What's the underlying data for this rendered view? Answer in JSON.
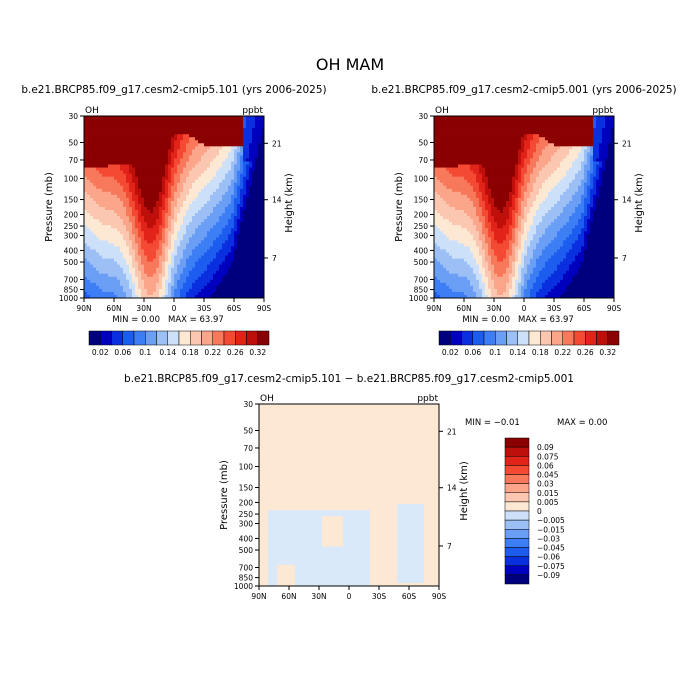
{
  "page": {
    "title": "OH MAM"
  },
  "palette": {
    "blues": [
      "#00007f",
      "#0000bf",
      "#0a2fdf",
      "#1c5df0",
      "#3e7ef5",
      "#6b9ef5",
      "#9cbff5",
      "#cde0fa"
    ],
    "reds": [
      "#fde8d4",
      "#fcc7b0",
      "#fba58a",
      "#f8785b",
      "#f44a33",
      "#e2231a",
      "#bf0f0b",
      "#8b0000"
    ],
    "diff_pale": "#fde8d4",
    "diff_light_blue": "#d9e9fa"
  },
  "chart_data": [
    {
      "type": "heatmap",
      "title": "b.e21.BRCP85.f09_g17.cesm2-cmip5.101 (yrs 2006-2025)",
      "variable_label": "OH",
      "units_label": "ppbt",
      "ylabel": "Pressure (mb)",
      "right_label": "Height (km)",
      "x_ticks": [
        "90N",
        "60N",
        "30N",
        "0",
        "30S",
        "60S",
        "90S"
      ],
      "y_ticks": [
        "30",
        "50",
        "70",
        "100",
        "150",
        "200",
        "250",
        "300",
        "400",
        "500",
        "700",
        "850",
        "1000"
      ],
      "height_ticks": [
        "21",
        "14",
        "7"
      ],
      "min_text": "MIN =     0.00",
      "max_text": "MAX =    63.97",
      "colorbar_labels": [
        "0.02",
        "0.06",
        "0.1",
        "0.14",
        "0.18",
        "0.22",
        "0.26",
        "0.32"
      ]
    },
    {
      "type": "heatmap",
      "title": "b.e21.BRCP85.f09_g17.cesm2-cmip5.001 (yrs 2006-2025)",
      "variable_label": "OH",
      "units_label": "ppbt",
      "ylabel": "Pressure (mb)",
      "right_label": "Height (km)",
      "x_ticks": [
        "90N",
        "60N",
        "30N",
        "0",
        "30S",
        "60S",
        "90S"
      ],
      "y_ticks": [
        "30",
        "50",
        "70",
        "100",
        "150",
        "200",
        "250",
        "300",
        "400",
        "500",
        "700",
        "850",
        "1000"
      ],
      "height_ticks": [
        "21",
        "14",
        "7"
      ],
      "min_text": "MIN =     0.00",
      "max_text": "MAX =    63.97",
      "colorbar_labels": [
        "0.02",
        "0.06",
        "0.1",
        "0.14",
        "0.18",
        "0.22",
        "0.26",
        "0.32"
      ]
    },
    {
      "type": "heatmap",
      "title": "b.e21.BRCP85.f09_g17.cesm2-cmip5.101 − b.e21.BRCP85.f09_g17.cesm2-cmip5.001",
      "variable_label": "OH",
      "units_label": "ppbt",
      "ylabel": "Pressure (mb)",
      "right_label": "Height (km)",
      "x_ticks": [
        "90N",
        "60N",
        "30N",
        "0",
        "30S",
        "60S",
        "90S"
      ],
      "y_ticks": [
        "30",
        "50",
        "70",
        "100",
        "150",
        "200",
        "250",
        "300",
        "400",
        "500",
        "700",
        "850",
        "1000"
      ],
      "height_ticks": [
        "21",
        "14",
        "7"
      ],
      "min_text": "MIN =    −0.01",
      "max_text": "MAX =     0.00",
      "colorbar_labels": [
        "0.09",
        "0.075",
        "0.06",
        "0.045",
        "0.03",
        "0.015",
        "0.005",
        "0",
        "−0.005",
        "−0.015",
        "−0.03",
        "−0.045",
        "−0.06",
        "−0.075",
        "−0.09"
      ]
    }
  ]
}
